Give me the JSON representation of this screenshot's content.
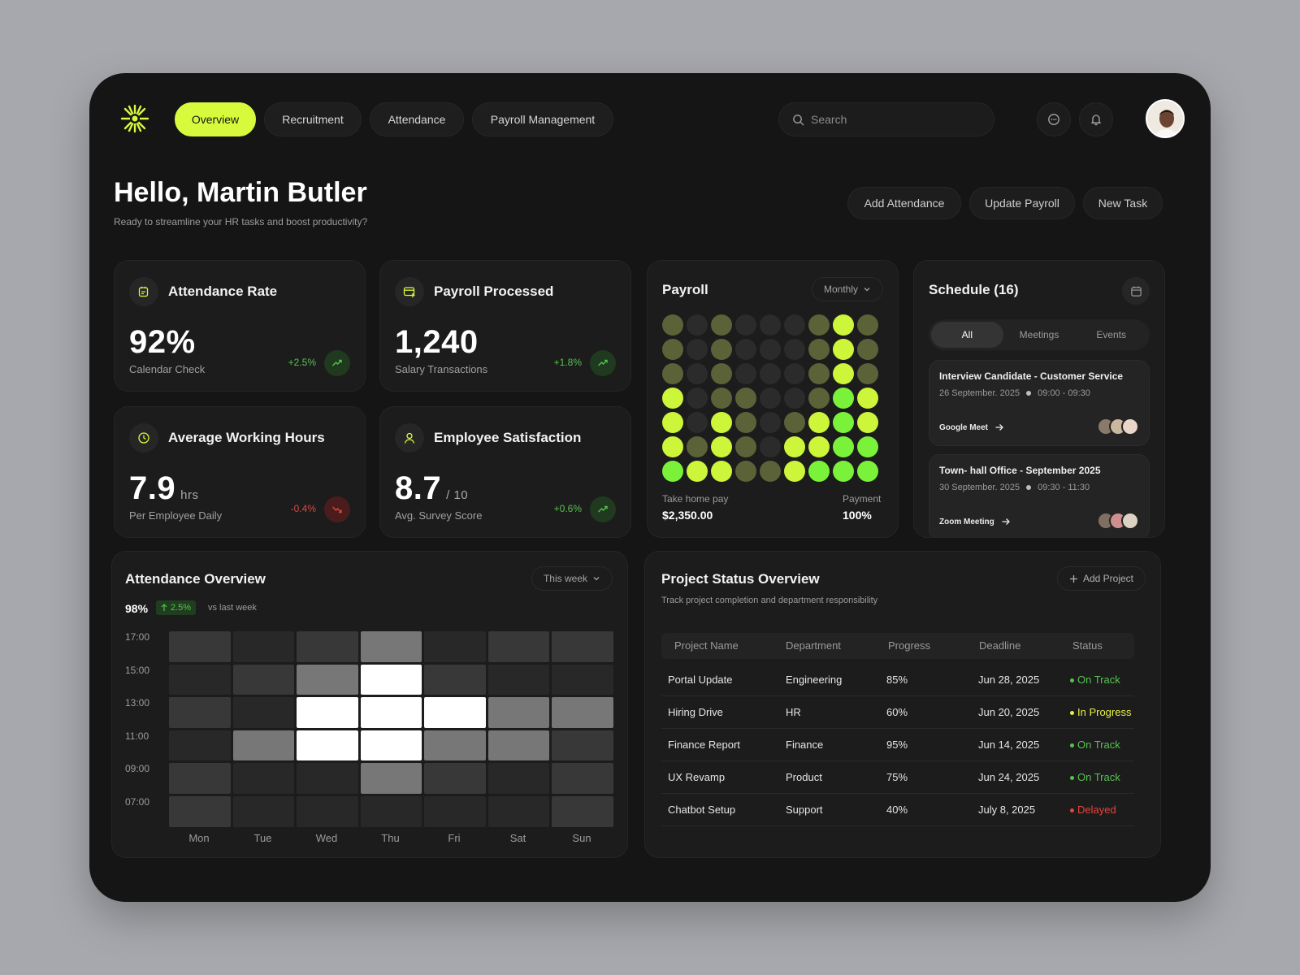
{
  "nav": {
    "tabs": [
      {
        "label": "Overview"
      },
      {
        "label": "Recruitment"
      },
      {
        "label": "Attendance"
      },
      {
        "label": "Payroll Management"
      }
    ],
    "search_placeholder": "Search"
  },
  "header": {
    "greeting": "Hello, Martin Butler",
    "subtitle": "Ready to streamline your HR tasks and boost productivity?",
    "actions": [
      "Add Attendance",
      "Update Payroll",
      "New Task"
    ]
  },
  "stats": [
    {
      "title": "Attendance Rate",
      "value": "92%",
      "unit": "",
      "label": "Calendar Check",
      "change": "+2.5%",
      "trend": "up",
      "icon": "calendar-edit-icon"
    },
    {
      "title": "Payroll Processed",
      "value": "1,240",
      "unit": "",
      "label": "Salary Transactions",
      "change": "+1.8%",
      "trend": "up",
      "icon": "card-add-icon"
    },
    {
      "title": "Average Working Hours",
      "value": "7.9",
      "unit": "hrs",
      "label": "Per Employee Daily",
      "change": "-0.4%",
      "trend": "down",
      "icon": "clock-icon"
    },
    {
      "title": "Employee Satisfaction",
      "value": "8.7",
      "unit": "/ 10",
      "label": "Avg. Survey Score",
      "change": "+0.6%",
      "trend": "up",
      "icon": "user-icon"
    }
  ],
  "payroll": {
    "title": "Payroll",
    "period": "Monthly",
    "take_home_label": "Take home pay",
    "take_home_value": "$2,350.00",
    "payment_label": "Payment",
    "payment_value": "100%",
    "grid_levels": [
      [
        1,
        0,
        1,
        0,
        0,
        0,
        1,
        3,
        1
      ],
      [
        1,
        0,
        1,
        0,
        0,
        0,
        1,
        3,
        1
      ],
      [
        1,
        0,
        1,
        0,
        0,
        0,
        1,
        3,
        1
      ],
      [
        3,
        0,
        1,
        1,
        0,
        0,
        1,
        4,
        3
      ],
      [
        3,
        0,
        3,
        1,
        0,
        1,
        3,
        4,
        3
      ],
      [
        3,
        1,
        3,
        1,
        0,
        3,
        3,
        4,
        4
      ],
      [
        4,
        3,
        3,
        1,
        1,
        3,
        4,
        4,
        4
      ]
    ]
  },
  "schedule": {
    "title": "Schedule (16)",
    "filters": [
      "All",
      "Meetings",
      "Events"
    ],
    "events": [
      {
        "title": "Interview Candidate - Customer Service",
        "date": "26 September. 2025",
        "time": "09:00 - 09:30",
        "link": "Google Meet"
      },
      {
        "title": "Town- hall Office - September 2025",
        "date": "30 September. 2025",
        "time": "09:30 - 11:30",
        "link": "Zoom Meeting"
      }
    ]
  },
  "attendance": {
    "title": "Attendance Overview",
    "range": "This week",
    "rate": "98%",
    "change": "2.5%",
    "compare": "vs last week",
    "hours": [
      "17:00",
      "15:00",
      "13:00",
      "11:00",
      "09:00",
      "07:00"
    ],
    "days": [
      "Mon",
      "Tue",
      "Wed",
      "Thu",
      "Fri",
      "Sat",
      "Sun"
    ]
  },
  "chart_data": {
    "type": "heatmap",
    "title": "Attendance Overview",
    "rows": [
      "17:00",
      "15:00",
      "13:00",
      "11:00",
      "09:00",
      "07:00"
    ],
    "columns": [
      "Mon",
      "Tue",
      "Wed",
      "Thu",
      "Fri",
      "Sat",
      "Sun"
    ],
    "values": [
      [
        2,
        1,
        2,
        3,
        1,
        2,
        2
      ],
      [
        1,
        2,
        3,
        5,
        2,
        1,
        1
      ],
      [
        2,
        1,
        5,
        5,
        5,
        3,
        3
      ],
      [
        1,
        3,
        5,
        5,
        3,
        3,
        2
      ],
      [
        2,
        1,
        1,
        3,
        2,
        1,
        2
      ],
      [
        2,
        1,
        1,
        1,
        1,
        1,
        2
      ]
    ],
    "scale": [
      1,
      5
    ]
  },
  "projects": {
    "title": "Project Status Overview",
    "subtitle": "Track project completion and department responsibility",
    "add_label": "Add Project",
    "columns": [
      "Project Name",
      "Department",
      "Progress",
      "Deadline",
      "Status"
    ],
    "rows": [
      {
        "name": "Portal Update",
        "dept": "Engineering",
        "progress": "85%",
        "deadline": "Jun 28, 2025",
        "status": "On Track"
      },
      {
        "name": "Hiring Drive",
        "dept": "HR",
        "progress": "60%",
        "deadline": "Jun 20, 2025",
        "status": "In Progress"
      },
      {
        "name": "Finance Report",
        "dept": "Finance",
        "progress": "95%",
        "deadline": "Jun 14, 2025",
        "status": "On Track"
      },
      {
        "name": "UX Revamp",
        "dept": "Product",
        "progress": "75%",
        "deadline": "Jun 24, 2025",
        "status": "On Track"
      },
      {
        "name": "Chatbot Setup",
        "dept": "Support",
        "progress": "40%",
        "deadline": "July 8, 2025",
        "status": "Delayed"
      }
    ]
  },
  "colors": {
    "accent": "#d8fa3c",
    "positive": "#56c24e",
    "negative": "#e0463b",
    "progress": "#e6f04a",
    "dot_levels": [
      "#2b2b2b",
      "#5b6237",
      "#7d8f32",
      "#cdf53a",
      "#7bf23a"
    ]
  }
}
